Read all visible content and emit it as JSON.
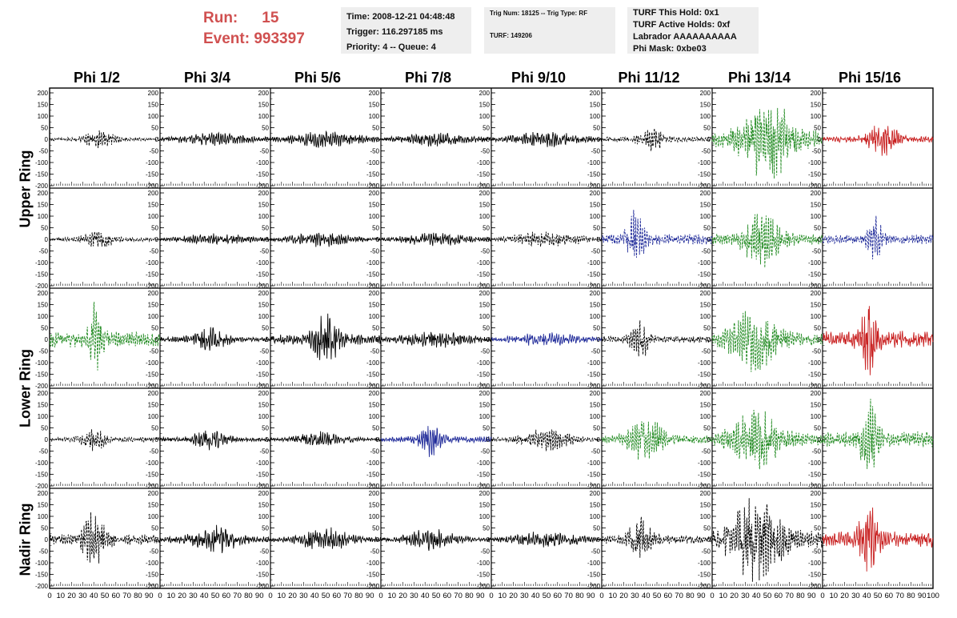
{
  "header": {
    "run_label": "Run:",
    "run_value": "15",
    "event_label": "Event:",
    "event_value": "993397",
    "time": "Time: 2008-12-21 04:48:48",
    "trigger": "Trigger: 116.297185 ms",
    "priority": "Priority: 4 -- Queue: 4",
    "trig_num": "Trig Num: 18125 -- Trig Type: RF",
    "turf": "TURF: 149206",
    "turf_hold": "TURF This Hold: 0x1",
    "turf_active": "TURF Active Holds: 0xf",
    "labrador": "Labrador AAAAAAAAAA",
    "phi_mask": "Phi Mask: 0xbe03"
  },
  "columns": [
    "Phi 1/2",
    "Phi 3/4",
    "Phi 5/6",
    "Phi 7/8",
    "Phi 9/10",
    "Phi 11/12",
    "Phi 13/14",
    "Phi 15/16"
  ],
  "ring_labels": [
    "Upper Ring",
    "Lower Ring",
    "Nadir Ring"
  ],
  "colors": {
    "black": "#000000",
    "green": "#228b22",
    "blue": "#1f2a99",
    "red": "#c81e1e",
    "run_text": "#d05050",
    "panel_bg": "#eeeeee"
  },
  "chart_data": {
    "type": "line",
    "xlim": [
      0,
      100
    ],
    "ylim": [
      -200,
      200
    ],
    "x_ticks": [
      0,
      10,
      20,
      30,
      40,
      50,
      60,
      70,
      80,
      90,
      100
    ],
    "x_tick_labels": [
      "0",
      "10",
      "20",
      "30",
      "40",
      "50",
      "60",
      "70",
      "80",
      "90",
      "100"
    ],
    "y_ticks": [
      200,
      150,
      100,
      50,
      0,
      -50,
      -100,
      -150,
      -200
    ],
    "y_tick_labels": [
      "200",
      "150",
      "100",
      "50",
      "0",
      "-50",
      "-100",
      "-150",
      "-200"
    ],
    "grid": false,
    "panels": [
      [
        {
          "style": "dashed",
          "color": "black",
          "amplitude": 35,
          "center": 45,
          "width": 25
        },
        {
          "style": "solid",
          "color": "black",
          "amplitude": 25,
          "center": 50,
          "width": 60
        },
        {
          "style": "solid",
          "color": "black",
          "amplitude": 30,
          "center": 50,
          "width": 60
        },
        {
          "style": "solid",
          "color": "black",
          "amplitude": 25,
          "center": 50,
          "width": 60
        },
        {
          "style": "solid",
          "color": "black",
          "amplitude": 28,
          "center": 50,
          "width": 60
        },
        {
          "style": "dashed",
          "color": "black",
          "amplitude": 45,
          "center": 45,
          "width": 20
        },
        {
          "style": "dashed",
          "color": "green",
          "amplitude": 150,
          "center": 50,
          "width": 40
        },
        {
          "style": "solid",
          "color": "red",
          "amplitude": 60,
          "center": 55,
          "width": 25
        }
      ],
      [
        {
          "style": "dashed",
          "color": "black",
          "amplitude": 35,
          "center": 45,
          "width": 25
        },
        {
          "style": "solid",
          "color": "black",
          "amplitude": 22,
          "center": 50,
          "width": 60
        },
        {
          "style": "solid",
          "color": "black",
          "amplitude": 28,
          "center": 45,
          "width": 50
        },
        {
          "style": "solid",
          "color": "black",
          "amplitude": 25,
          "center": 50,
          "width": 60
        },
        {
          "style": "dashed",
          "color": "black",
          "amplitude": 28,
          "center": 50,
          "width": 60
        },
        {
          "style": "dashed",
          "color": "blue",
          "amplitude": 100,
          "center": 30,
          "width": 15
        },
        {
          "style": "dashed",
          "color": "green",
          "amplitude": 100,
          "center": 45,
          "width": 30
        },
        {
          "style": "dashed",
          "color": "blue",
          "amplitude": 90,
          "center": 48,
          "width": 12
        }
      ],
      [
        {
          "style": "dashed",
          "color": "green",
          "amplitude": 150,
          "center": 42,
          "width": 10
        },
        {
          "style": "solid",
          "color": "black",
          "amplitude": 50,
          "center": 45,
          "width": 25
        },
        {
          "style": "solid",
          "color": "black",
          "amplitude": 100,
          "center": 50,
          "width": 20
        },
        {
          "style": "solid",
          "color": "black",
          "amplitude": 30,
          "center": 50,
          "width": 60
        },
        {
          "style": "solid",
          "color": "blue",
          "amplitude": 25,
          "center": 50,
          "width": 60
        },
        {
          "style": "dashed",
          "color": "black",
          "amplitude": 70,
          "center": 35,
          "width": 15
        },
        {
          "style": "dashed",
          "color": "green",
          "amplitude": 120,
          "center": 40,
          "width": 40
        },
        {
          "style": "solid",
          "color": "red",
          "amplitude": 160,
          "center": 42,
          "width": 12
        }
      ],
      [
        {
          "style": "dashed",
          "color": "black",
          "amplitude": 45,
          "center": 40,
          "width": 20
        },
        {
          "style": "solid",
          "color": "black",
          "amplitude": 40,
          "center": 45,
          "width": 30
        },
        {
          "style": "solid",
          "color": "black",
          "amplitude": 30,
          "center": 45,
          "width": 40
        },
        {
          "style": "solid",
          "color": "blue",
          "amplitude": 60,
          "center": 45,
          "width": 18
        },
        {
          "style": "dashed",
          "color": "black",
          "amplitude": 40,
          "center": 50,
          "width": 40
        },
        {
          "style": "dashed",
          "color": "green",
          "amplitude": 80,
          "center": 40,
          "width": 30
        },
        {
          "style": "dashed",
          "color": "green",
          "amplitude": 110,
          "center": 40,
          "width": 40
        },
        {
          "style": "dashed",
          "color": "green",
          "amplitude": 150,
          "center": 42,
          "width": 15
        }
      ],
      [
        {
          "style": "dashed",
          "color": "black",
          "amplitude": 100,
          "center": 40,
          "width": 20
        },
        {
          "style": "solid",
          "color": "black",
          "amplitude": 50,
          "center": 50,
          "width": 40
        },
        {
          "style": "solid",
          "color": "black",
          "amplitude": 45,
          "center": 50,
          "width": 40
        },
        {
          "style": "solid",
          "color": "black",
          "amplitude": 40,
          "center": 45,
          "width": 40
        },
        {
          "style": "solid",
          "color": "black",
          "amplitude": 30,
          "center": 50,
          "width": 60
        },
        {
          "style": "dashed",
          "color": "black",
          "amplitude": 80,
          "center": 35,
          "width": 20
        },
        {
          "style": "dashed",
          "color": "black",
          "amplitude": 170,
          "center": 40,
          "width": 40
        },
        {
          "style": "solid",
          "color": "red",
          "amplitude": 150,
          "center": 42,
          "width": 15
        }
      ]
    ]
  }
}
